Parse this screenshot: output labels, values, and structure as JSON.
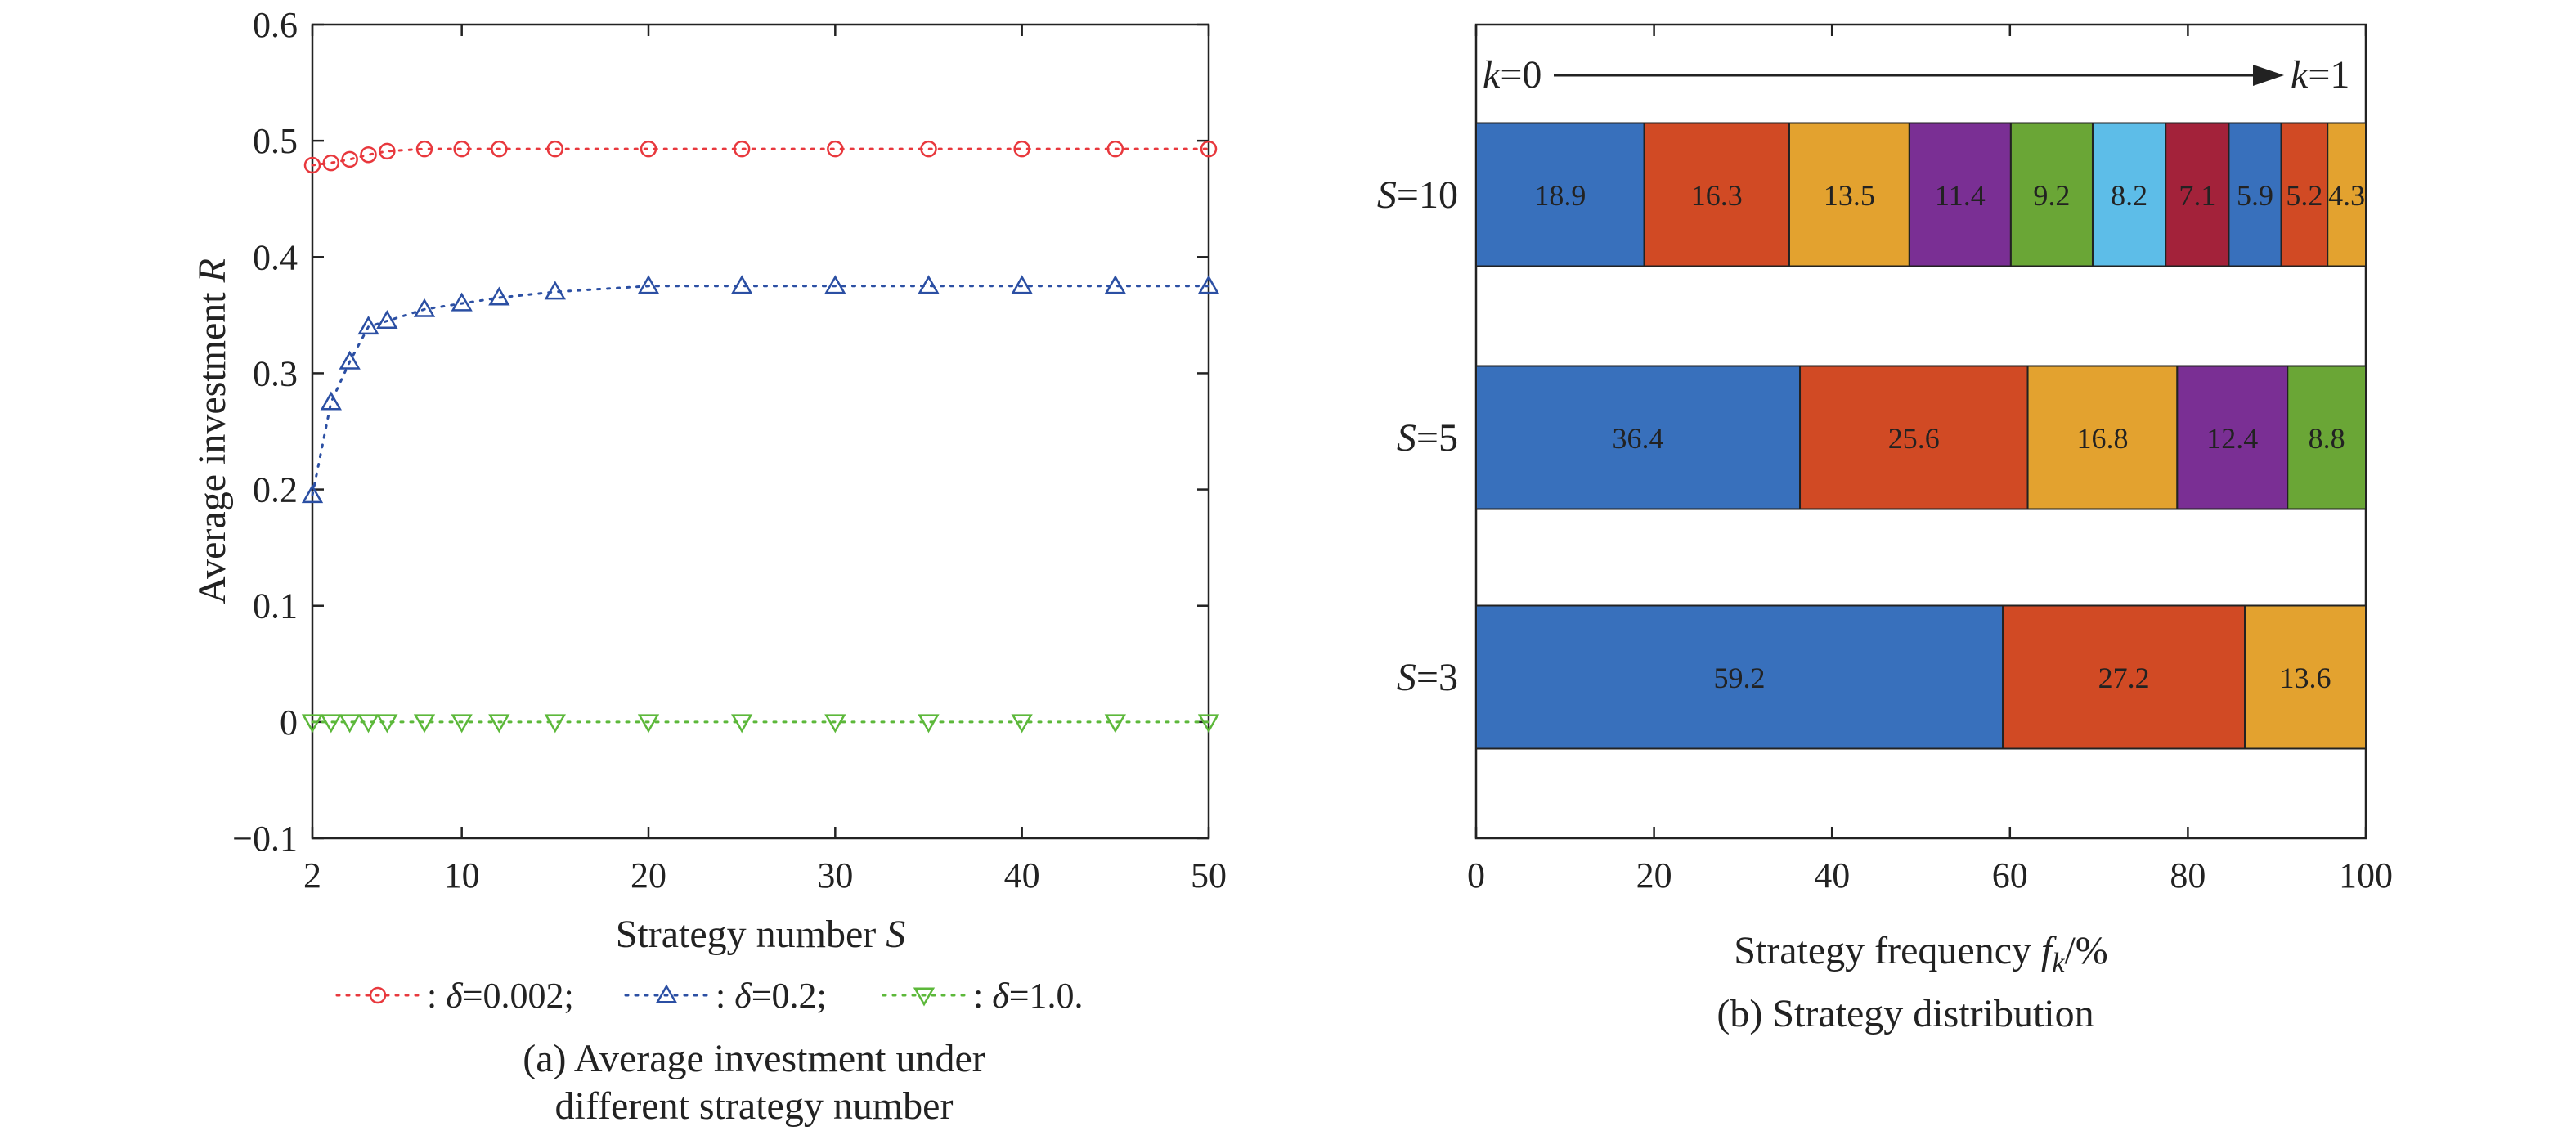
{
  "chart_data": [
    {
      "type": "line",
      "caption": [
        "(a) Average investment under",
        "different strategy number"
      ],
      "xlabel": "Strategy number",
      "xlabel_var": "S",
      "ylabel": "Average investment",
      "ylabel_var": "R",
      "xlim": [
        2,
        50
      ],
      "ylim": [
        -0.1,
        0.6
      ],
      "xticks": [
        2,
        10,
        20,
        30,
        40,
        50
      ],
      "xtick_labels": [
        "2",
        "10",
        "20",
        "30",
        "40",
        "50"
      ],
      "yticks": [
        -0.1,
        0,
        0.1,
        0.2,
        0.3,
        0.4,
        0.5,
        0.6
      ],
      "ytick_labels": [
        "−0.1",
        "0",
        "0.1",
        "0.2",
        "0.3",
        "0.4",
        "0.5",
        "0.6"
      ],
      "grid": false,
      "legend_position": "bottom",
      "x": [
        2,
        3,
        4,
        5,
        6,
        8,
        10,
        12,
        15,
        20,
        25,
        30,
        35,
        40,
        45,
        50
      ],
      "series": [
        {
          "name": "δ=0.002",
          "legend_label": ": δ=0.002;",
          "color": "#e8383d",
          "marker": "circle",
          "values": [
            0.479,
            0.481,
            0.484,
            0.488,
            0.491,
            0.493,
            0.493,
            0.493,
            0.493,
            0.493,
            0.493,
            0.493,
            0.493,
            0.493,
            0.493,
            0.493
          ]
        },
        {
          "name": "δ=0.2",
          "legend_label": ": δ=0.2;",
          "color": "#2b4fa3",
          "marker": "triangle-up",
          "values": [
            0.195,
            0.275,
            0.31,
            0.34,
            0.345,
            0.355,
            0.36,
            0.365,
            0.37,
            0.375,
            0.375,
            0.375,
            0.375,
            0.375,
            0.375,
            0.375
          ]
        },
        {
          "name": "δ=1.0",
          "legend_label": ": δ=1.0.",
          "color": "#5cb83a",
          "marker": "triangle-down",
          "values": [
            0,
            0,
            0,
            0,
            0,
            0,
            0,
            0,
            0,
            0,
            0,
            0,
            0,
            0,
            0,
            0
          ]
        }
      ]
    },
    {
      "type": "bar",
      "orientation": "horizontal-stacked",
      "caption": "(b) Strategy distribution",
      "xlabel": "Strategy frequency",
      "xlabel_var": "f",
      "xlabel_sub": "k",
      "xlabel_unit": "/%",
      "xlim": [
        0,
        100
      ],
      "xticks": [
        0,
        20,
        40,
        60,
        80,
        100
      ],
      "xtick_labels": [
        "0",
        "20",
        "40",
        "60",
        "80",
        "100"
      ],
      "arrow_start": "k=0",
      "arrow_end": "k=1",
      "segment_colors": [
        "#3870bc",
        "#d14a24",
        "#e3a22f",
        "#7a2f94",
        "#6aa636",
        "#5dbde8",
        "#a3223a",
        "#3870bc",
        "#d14a24",
        "#e3a22f"
      ],
      "bars": [
        {
          "label": "S=10",
          "values": [
            18.9,
            16.3,
            13.5,
            11.4,
            9.2,
            8.2,
            7.1,
            5.9,
            5.2,
            4.3
          ],
          "label_texts": [
            "18.9",
            "16.3",
            "13.5",
            "11.4",
            "9.2",
            "8.2",
            "7.1",
            "5.9",
            "5.2",
            "4.3"
          ],
          "label_colors": [
            "#e6e63c",
            "#e8282d",
            "#2b4fa3",
            "#e8282d",
            "#e8282d",
            "#2b4fa3",
            "#e8282d",
            "#e8282d",
            "#e8282d",
            "#e8282d"
          ]
        },
        {
          "label": "S=5",
          "values": [
            36.4,
            25.6,
            16.8,
            12.4,
            8.8
          ],
          "label_texts": [
            "36.4",
            "25.6",
            "16.8",
            "12.4",
            "8.8"
          ],
          "label_colors": [
            "#e6e63c",
            "#e8282d",
            "#2b4fa3",
            "#e8282d",
            "#e8282d"
          ]
        },
        {
          "label": "S=3",
          "values": [
            59.2,
            27.2,
            13.6
          ],
          "label_texts": [
            "59.2",
            "27.2",
            "13.6"
          ],
          "label_colors": [
            "#e6e63c",
            "#e8282d",
            "#2b4fa3"
          ]
        }
      ]
    }
  ]
}
